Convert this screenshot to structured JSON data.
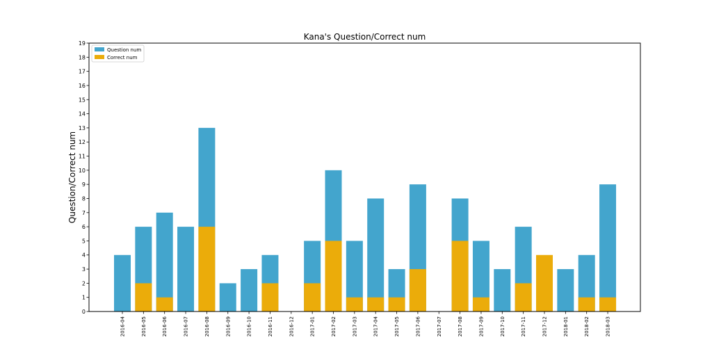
{
  "chart_data": {
    "type": "bar",
    "title": "Kana's Question/Correct num",
    "xlabel": "",
    "ylabel": "Question/Correct num",
    "ylim": [
      0,
      19
    ],
    "yticks": [
      "0",
      "1",
      "2",
      "3",
      "4",
      "5",
      "6",
      "7",
      "8",
      "9",
      "10",
      "11",
      "12",
      "13",
      "14",
      "15",
      "16",
      "17",
      "18",
      "19"
    ],
    "grid": false,
    "legend_position": "top-left",
    "stacking": "overlaid",
    "categories": [
      "2016-04",
      "2016-05",
      "2016-06",
      "2016-07",
      "2016-08",
      "2016-09",
      "2016-10",
      "2016-11",
      "2016-12",
      "2017-01",
      "2017-02",
      "2017-03",
      "2017-04",
      "2017-05",
      "2017-06",
      "2017-07",
      "2017-08",
      "2017-09",
      "2017-10",
      "2017-11",
      "2017-12",
      "2018-01",
      "2018-02",
      "2018-03"
    ],
    "series": [
      {
        "name": "Question num",
        "color": "#43a5cd",
        "values": [
          4,
          6,
          7,
          6,
          13,
          2,
          3,
          4,
          0,
          5,
          10,
          5,
          8,
          3,
          9,
          0,
          8,
          5,
          3,
          6,
          0,
          3,
          4,
          9
        ]
      },
      {
        "name": "Correct num",
        "color": "#ebac0a",
        "values": [
          0,
          2,
          1,
          0,
          6,
          0,
          0,
          2,
          0,
          2,
          5,
          1,
          1,
          1,
          3,
          0,
          5,
          1,
          0,
          2,
          4,
          0,
          1,
          1
        ]
      }
    ]
  }
}
